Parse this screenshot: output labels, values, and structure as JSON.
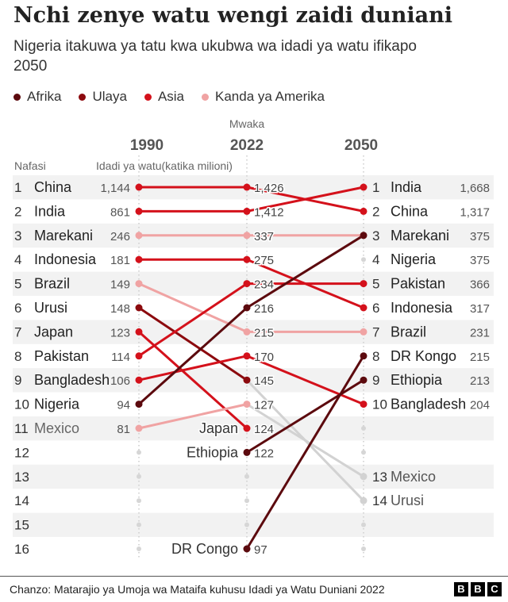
{
  "title": "Nchi zenye watu wengi zaidi duniani",
  "subtitle": "Nigeria itakuwa ya tatu kwa ukubwa wa idadi ya watu ifikapo 2050",
  "legend": [
    {
      "label": "Afrika",
      "color": "#5c0a0e"
    },
    {
      "label": "Ulaya",
      "color": "#8c0a0e"
    },
    {
      "label": "Asia",
      "color": "#d4111b"
    },
    {
      "label": "Kanda ya Amerika",
      "color": "#f0a3a3"
    }
  ],
  "header": {
    "mwaka_label": "Mwaka",
    "year_1990": "1990",
    "year_2022": "2022",
    "year_2050": "2050",
    "nafasi_label": "Nafasi",
    "idadi_label": "Idadi ya watu(katika milioni)"
  },
  "footer": {
    "source": "Chanzo: Matarajio ya Umoja wa Mataifa kuhusu Idadi ya Watu Duniani 2022",
    "logo": [
      "B",
      "B",
      "C"
    ]
  },
  "chart_data": {
    "type": "slope",
    "title": "Nchi zenye watu wengi zaidi duniani",
    "years": [
      "1990",
      "2022",
      "2050"
    ],
    "ranks": [
      "1",
      "2",
      "3",
      "4",
      "5",
      "6",
      "7",
      "8",
      "9",
      "10",
      "11",
      "12",
      "13",
      "14",
      "15",
      "16"
    ],
    "region_colors": {
      "Afrika": "#5c0a0e",
      "Ulaya": "#8c0a0e",
      "Asia": "#d4111b",
      "Kanda ya Amerika": "#f0a3a3",
      "Other": "#cfcfcf"
    },
    "countries": [
      {
        "name": "China",
        "region": "Asia",
        "r1990": 1,
        "v1990": "1,144",
        "r2022": 1,
        "v2022": "1,426",
        "r2050": 2,
        "v2050": "1,317"
      },
      {
        "name": "India",
        "region": "Asia",
        "r1990": 2,
        "v1990": "861",
        "r2022": 2,
        "v2022": "1,412",
        "r2050": 1,
        "v2050": "1,668"
      },
      {
        "name": "Marekani",
        "region": "Kanda ya Amerika",
        "r1990": 3,
        "v1990": "246",
        "r2022": 3,
        "v2022": "337",
        "r2050": 3,
        "v2050": "375"
      },
      {
        "name": "Indonesia",
        "region": "Asia",
        "r1990": 4,
        "v1990": "181",
        "r2022": 4,
        "v2022": "275",
        "r2050": 6,
        "v2050": "317"
      },
      {
        "name": "Brazil",
        "region": "Kanda ya Amerika",
        "r1990": 5,
        "v1990": "149",
        "r2022": 7,
        "v2022": "215",
        "r2050": 7,
        "v2050": "231"
      },
      {
        "name": "Urusi",
        "region": "Ulaya",
        "r1990": 6,
        "v1990": "148",
        "r2022": 9,
        "v2022": "145",
        "r2050": 14,
        "v2050": ""
      },
      {
        "name": "Japan",
        "region": "Asia",
        "r1990": 7,
        "v1990": "123",
        "r2022": 11,
        "v2022": "124",
        "r2050": null,
        "v2050": ""
      },
      {
        "name": "Pakistan",
        "region": "Asia",
        "r1990": 8,
        "v1990": "114",
        "r2022": 5,
        "v2022": "234",
        "r2050": 5,
        "v2050": "366"
      },
      {
        "name": "Bangladesh",
        "region": "Asia",
        "r1990": 9,
        "v1990": "106",
        "r2022": 8,
        "v2022": "170",
        "r2050": 10,
        "v2050": "204"
      },
      {
        "name": "Nigeria",
        "region": "Afrika",
        "r1990": 10,
        "v1990": "94",
        "r2022": 6,
        "v2022": "216",
        "r2050": 3,
        "v2050": "375"
      },
      {
        "name": "Mexico",
        "region": "Kanda ya Amerika",
        "r1990": 11,
        "v1990": "81",
        "r2022": 10,
        "v2022": "127",
        "r2050": 13,
        "v2050": ""
      },
      {
        "name": "Ethiopia",
        "region": "Afrika",
        "r1990": null,
        "v1990": "",
        "r2022": 12,
        "v2022": "122",
        "r2050": 9,
        "v2050": "213"
      },
      {
        "name": "DR Congo",
        "region": "Afrika",
        "r1990": null,
        "v1990": "",
        "r2022": 16,
        "v2022": "97",
        "r2050": 8,
        "v2050": "215"
      }
    ],
    "labels_1990": [
      {
        "rank": 1,
        "name": "China",
        "value": "1,144"
      },
      {
        "rank": 2,
        "name": "India",
        "value": "861"
      },
      {
        "rank": 3,
        "name": "Marekani",
        "value": "246"
      },
      {
        "rank": 4,
        "name": "Indonesia",
        "value": "181"
      },
      {
        "rank": 5,
        "name": "Brazil",
        "value": "149"
      },
      {
        "rank": 6,
        "name": "Urusi",
        "value": "148"
      },
      {
        "rank": 7,
        "name": "Japan",
        "value": "123"
      },
      {
        "rank": 8,
        "name": "Pakistan",
        "value": "114"
      },
      {
        "rank": 9,
        "name": "Bangladesh",
        "value": "106"
      },
      {
        "rank": 10,
        "name": "Nigeria",
        "value": "94"
      },
      {
        "rank": 11,
        "name": "Mexico",
        "value": "81",
        "muted": true
      }
    ],
    "labels_2022_names": [
      {
        "rank": 11,
        "name": "Japan"
      },
      {
        "rank": 12,
        "name": "Ethiopia"
      },
      {
        "rank": 16,
        "name": "DR Congo"
      }
    ],
    "labels_2050": [
      {
        "rank": 1,
        "name": "India",
        "value": "1,668"
      },
      {
        "rank": 2,
        "name": "China",
        "value": "1,317"
      },
      {
        "rank": 3,
        "name": "Marekani",
        "value": "375"
      },
      {
        "rank": 3,
        "display_rank": "4",
        "name": "Nigeria",
        "value": "375",
        "slot": 4
      },
      {
        "rank": 5,
        "name": "Pakistan",
        "value": "366"
      },
      {
        "rank": 6,
        "name": "Indonesia",
        "value": "317"
      },
      {
        "rank": 7,
        "name": "Brazil",
        "value": "231"
      },
      {
        "rank": 8,
        "name": "DR Kongo",
        "value": "215"
      },
      {
        "rank": 9,
        "name": "Ethiopia",
        "value": "213"
      },
      {
        "rank": 10,
        "name": "Bangladesh",
        "value": "204"
      },
      {
        "rank": 13,
        "name": "Mexico",
        "value": "",
        "muted": true
      },
      {
        "rank": 14,
        "name": "Urusi",
        "value": "",
        "muted": true
      }
    ]
  }
}
